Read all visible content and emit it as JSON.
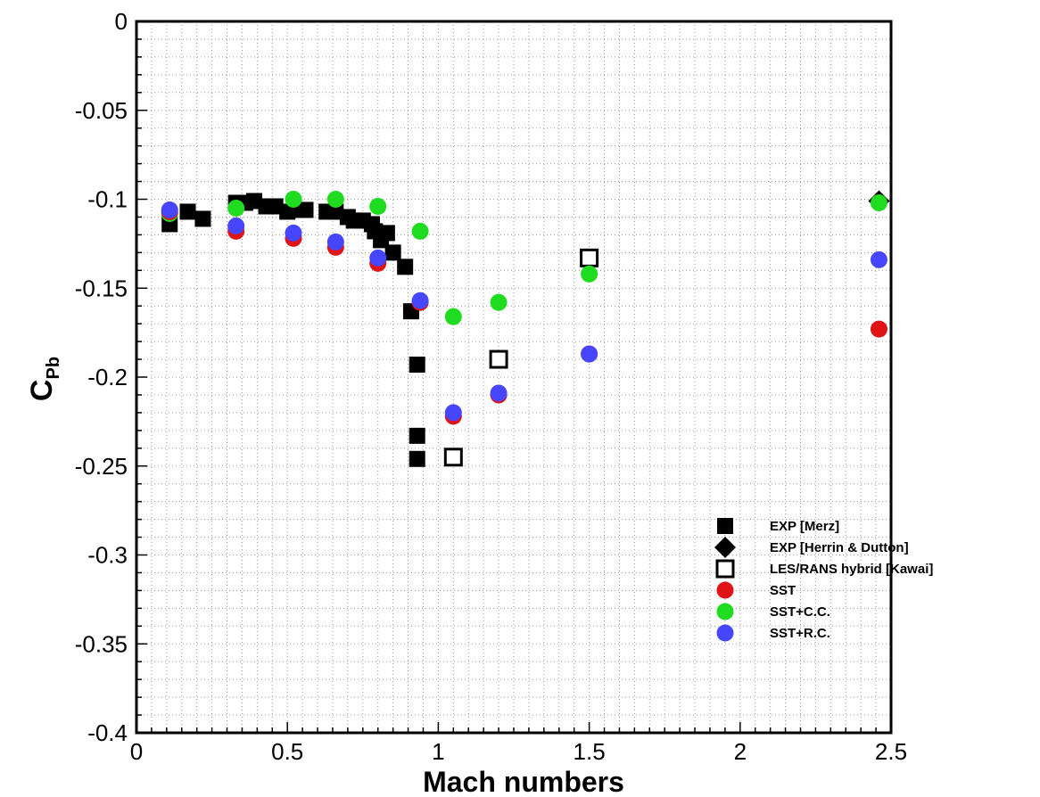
{
  "chart_data": {
    "type": "scatter",
    "title": "",
    "xlabel": "Mach numbers",
    "ylabel_main": "C",
    "ylabel_sub": "Pb",
    "xlim": [
      0,
      2.5
    ],
    "ylim": [
      -0.4,
      0
    ],
    "x_ticks": [
      0,
      0.5,
      1,
      1.5,
      2,
      2.5
    ],
    "x_tick_labels": [
      "0",
      "0.5",
      "1",
      "1.5",
      "2",
      "2.5"
    ],
    "y_ticks": [
      0,
      -0.05,
      -0.1,
      -0.15,
      -0.2,
      -0.25,
      -0.3,
      -0.35,
      -0.4
    ],
    "y_tick_labels": [
      "0",
      "-0.05",
      "-0.1",
      "-0.15",
      "-0.2",
      "-0.25",
      "-0.3",
      "-0.35",
      "-0.4"
    ],
    "grid": true,
    "legend_position": "bottom-right",
    "series": [
      {
        "name": "EXP [Merz]",
        "marker": "square-filled",
        "color": "#000000",
        "x": [
          0.11,
          0.17,
          0.22,
          0.33,
          0.36,
          0.39,
          0.43,
          0.46,
          0.5,
          0.53,
          0.56,
          0.63,
          0.66,
          0.7,
          0.72,
          0.75,
          0.78,
          0.79,
          0.81,
          0.83,
          0.85,
          0.89,
          0.91,
          0.93,
          0.93,
          0.93
        ],
        "y": [
          -0.114,
          -0.107,
          -0.111,
          -0.102,
          -0.102,
          -0.101,
          -0.104,
          -0.104,
          -0.107,
          -0.106,
          -0.106,
          -0.107,
          -0.107,
          -0.11,
          -0.112,
          -0.112,
          -0.114,
          -0.118,
          -0.123,
          -0.119,
          -0.13,
          -0.138,
          -0.163,
          -0.193,
          -0.233,
          -0.246
        ]
      },
      {
        "name": "EXP [Herrin & Dutton]",
        "marker": "diamond-filled",
        "color": "#000000",
        "x": [
          2.46
        ],
        "y": [
          -0.101
        ]
      },
      {
        "name": "LES/RANS hybrid [Kawai]",
        "marker": "square-open",
        "color": "#000000",
        "x": [
          1.05,
          1.2,
          1.5
        ],
        "y": [
          -0.245,
          -0.19,
          -0.133
        ]
      },
      {
        "name": "SST",
        "marker": "circle",
        "color": "#e01414",
        "x": [
          0.11,
          0.33,
          0.52,
          0.66,
          0.8,
          0.94,
          1.05,
          1.2,
          1.5,
          2.46
        ],
        "y": [
          -0.107,
          -0.118,
          -0.122,
          -0.127,
          -0.136,
          -0.158,
          -0.222,
          -0.21,
          -0.187,
          -0.173
        ]
      },
      {
        "name": "SST+C.C.",
        "marker": "circle",
        "color": "#20dc20",
        "x": [
          0.11,
          0.33,
          0.52,
          0.66,
          0.8,
          0.94,
          1.05,
          1.2,
          1.5,
          2.46
        ],
        "y": [
          -0.108,
          -0.105,
          -0.1,
          -0.1,
          -0.104,
          -0.118,
          -0.166,
          -0.158,
          -0.142,
          -0.102
        ]
      },
      {
        "name": "SST+R.C.",
        "marker": "circle",
        "color": "#4646ff",
        "x": [
          0.11,
          0.33,
          0.52,
          0.66,
          0.8,
          0.94,
          1.05,
          1.2,
          1.5,
          2.46
        ],
        "y": [
          -0.106,
          -0.115,
          -0.119,
          -0.124,
          -0.133,
          -0.157,
          -0.22,
          -0.209,
          -0.187,
          -0.134
        ]
      }
    ]
  }
}
